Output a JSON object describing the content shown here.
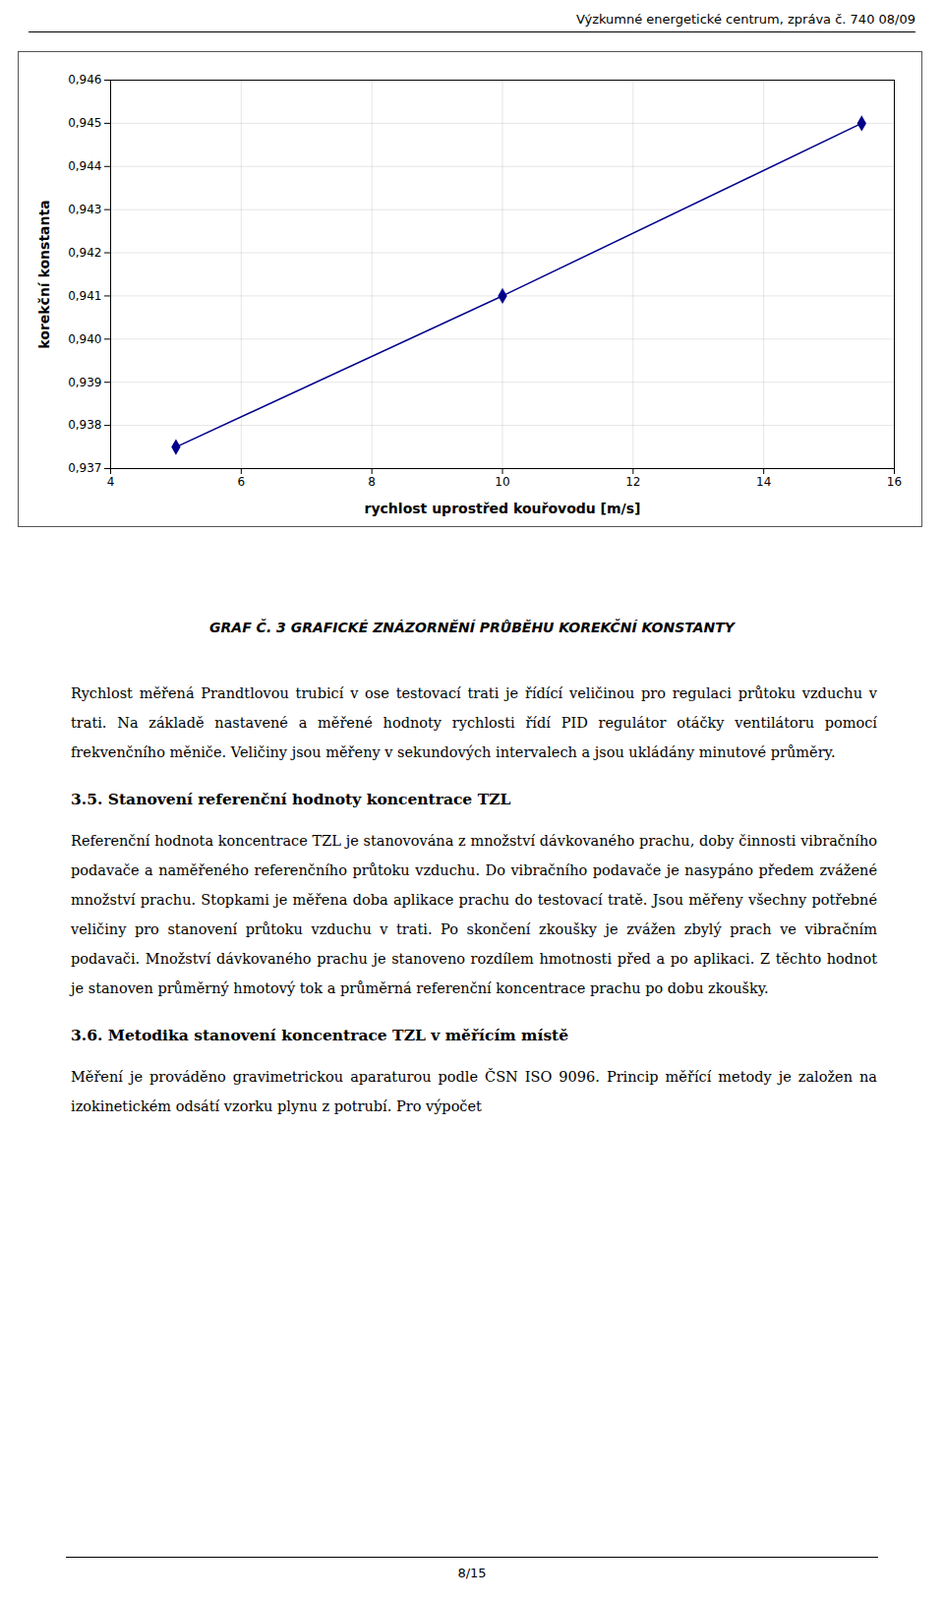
{
  "header": "Výzkumné energetické centrum, zpráva č. 740 08/09",
  "chart_data": {
    "type": "line",
    "caption": "GRAF Č. 3  GRAFICKÉ ZNÁZORNĚNÍ PRŮBĚHU KOREKČNÍ KONSTANTY",
    "xlabel": "rychlost uprostřed kouřovodu [m/s]",
    "ylabel": "korekční konstanta",
    "x": [
      5.0,
      10.0,
      15.5
    ],
    "values": [
      0.9375,
      0.941,
      0.945
    ],
    "color": "#00008B",
    "marker": "diamond",
    "xlim": [
      4,
      16
    ],
    "ylim": [
      0.937,
      0.946
    ],
    "xticks": [
      4,
      6,
      8,
      10,
      12,
      14,
      16
    ],
    "yticks": [
      {
        "value": 0.937,
        "label": "0,937"
      },
      {
        "value": 0.938,
        "label": "0,938"
      },
      {
        "value": 0.939,
        "label": "0,939"
      },
      {
        "value": 0.94,
        "label": "0,940"
      },
      {
        "value": 0.941,
        "label": "0,941"
      },
      {
        "value": 0.942,
        "label": "0,942"
      },
      {
        "value": 0.943,
        "label": "0,943"
      },
      {
        "value": 0.944,
        "label": "0,944"
      },
      {
        "value": 0.945,
        "label": "0,945"
      },
      {
        "value": 0.946,
        "label": "0,946"
      }
    ],
    "grid": true
  },
  "body": [
    {
      "type": "paragraph",
      "text": "Rychlost měřená Prandtlovou trubicí v ose testovací trati je řídící veličinou pro regulaci průtoku vzduchu v trati. Na základě nastavené a měřené hodnoty rychlosti řídí PID regulátor otáčky ventilátoru pomocí frekvenčního měniče. Veličiny jsou měřeny v sekundových intervalech a jsou ukládány minutové průměry."
    },
    {
      "type": "heading",
      "text": "3.5. Stanovení referenční hodnoty koncentrace TZL"
    },
    {
      "type": "paragraph",
      "text": "Referenční hodnota koncentrace TZL je stanovována z množství dávkovaného prachu, doby činnosti vibračního podavače a naměřeného referenčního průtoku vzduchu. Do vibračního podavače je nasypáno předem zvážené množství prachu. Stopkami je měřena doba aplikace prachu do testovací tratě. Jsou měřeny všechny potřebné veličiny pro stanovení průtoku vzduchu v trati. Po skončení zkoušky je zvážen zbylý prach ve vibračním podavači. Množství dávkovaného prachu je stanoveno rozdílem hmotnosti před a po aplikaci. Z těchto hodnot je stanoven průměrný hmotový tok a průměrná referenční koncentrace prachu po dobu zkoušky."
    },
    {
      "type": "heading",
      "text": "3.6. Metodika stanovení koncentrace TZL v měřícím místě"
    },
    {
      "type": "paragraph",
      "text": "Měření je prováděno gravimetrickou aparaturou podle ČSN ISO 9096. Princip měřící metody je založen na izokinetickém odsátí vzorku plynu z potrubí. Pro výpočet"
    }
  ],
  "footer": "8/15"
}
